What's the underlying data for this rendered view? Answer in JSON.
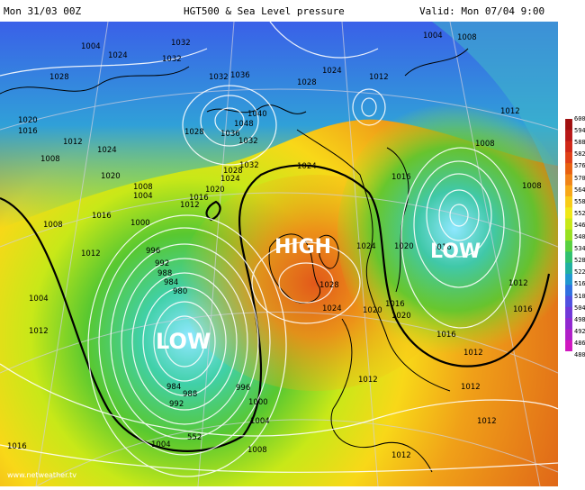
{
  "header": {
    "run": "Mon 31/03 00Z",
    "title": "HGT500 & Sea Level pressure",
    "valid": "Valid: Mon 07/04 9:00"
  },
  "map": {
    "systems": [
      {
        "id": "high",
        "label": "HIGH"
      },
      {
        "id": "low-atlantic",
        "label": "LOW"
      },
      {
        "id": "low-east",
        "label": "LOW"
      }
    ],
    "isobar_labels": [
      "1004",
      "1008",
      "1024",
      "1028",
      "1032",
      "1020",
      "1016",
      "1012",
      "1036",
      "1040",
      "1048",
      "1000",
      "996",
      "992",
      "988",
      "984",
      "980",
      "552",
      "1004",
      "1012",
      "1016",
      "1008",
      "1012",
      "1024",
      "1020",
      "1028",
      "1024",
      "1016",
      "1020",
      "1012",
      "1004",
      "1008",
      "1012",
      "1000",
      "1004",
      "1016",
      "1008",
      "1012",
      "1012",
      "1016",
      "1016",
      "1012",
      "1028",
      "1032",
      "1024"
    ],
    "watermark": "www.netweather.tv"
  },
  "colors": {
    "low_core": "#8fe8ff",
    "high_core": "#e2581a",
    "isobar": "#ffffff",
    "contour": "#000000"
  },
  "scale": {
    "labels": [
      "600",
      "594",
      "588",
      "582",
      "576",
      "570",
      "564",
      "558",
      "552",
      "546",
      "540",
      "534",
      "528",
      "522",
      "516",
      "510",
      "504",
      "498",
      "492",
      "486",
      "480"
    ],
    "colors": [
      "#a01010",
      "#b81818",
      "#d02818",
      "#e04018",
      "#e86010",
      "#f08418",
      "#f8a818",
      "#f8cc18",
      "#f0e818",
      "#c8e818",
      "#98e020",
      "#58d040",
      "#30c070",
      "#20b0a0",
      "#2098d0",
      "#3070e0",
      "#5050e0",
      "#7038d8",
      "#9028d0",
      "#b020c8",
      "#d018c0"
    ]
  }
}
